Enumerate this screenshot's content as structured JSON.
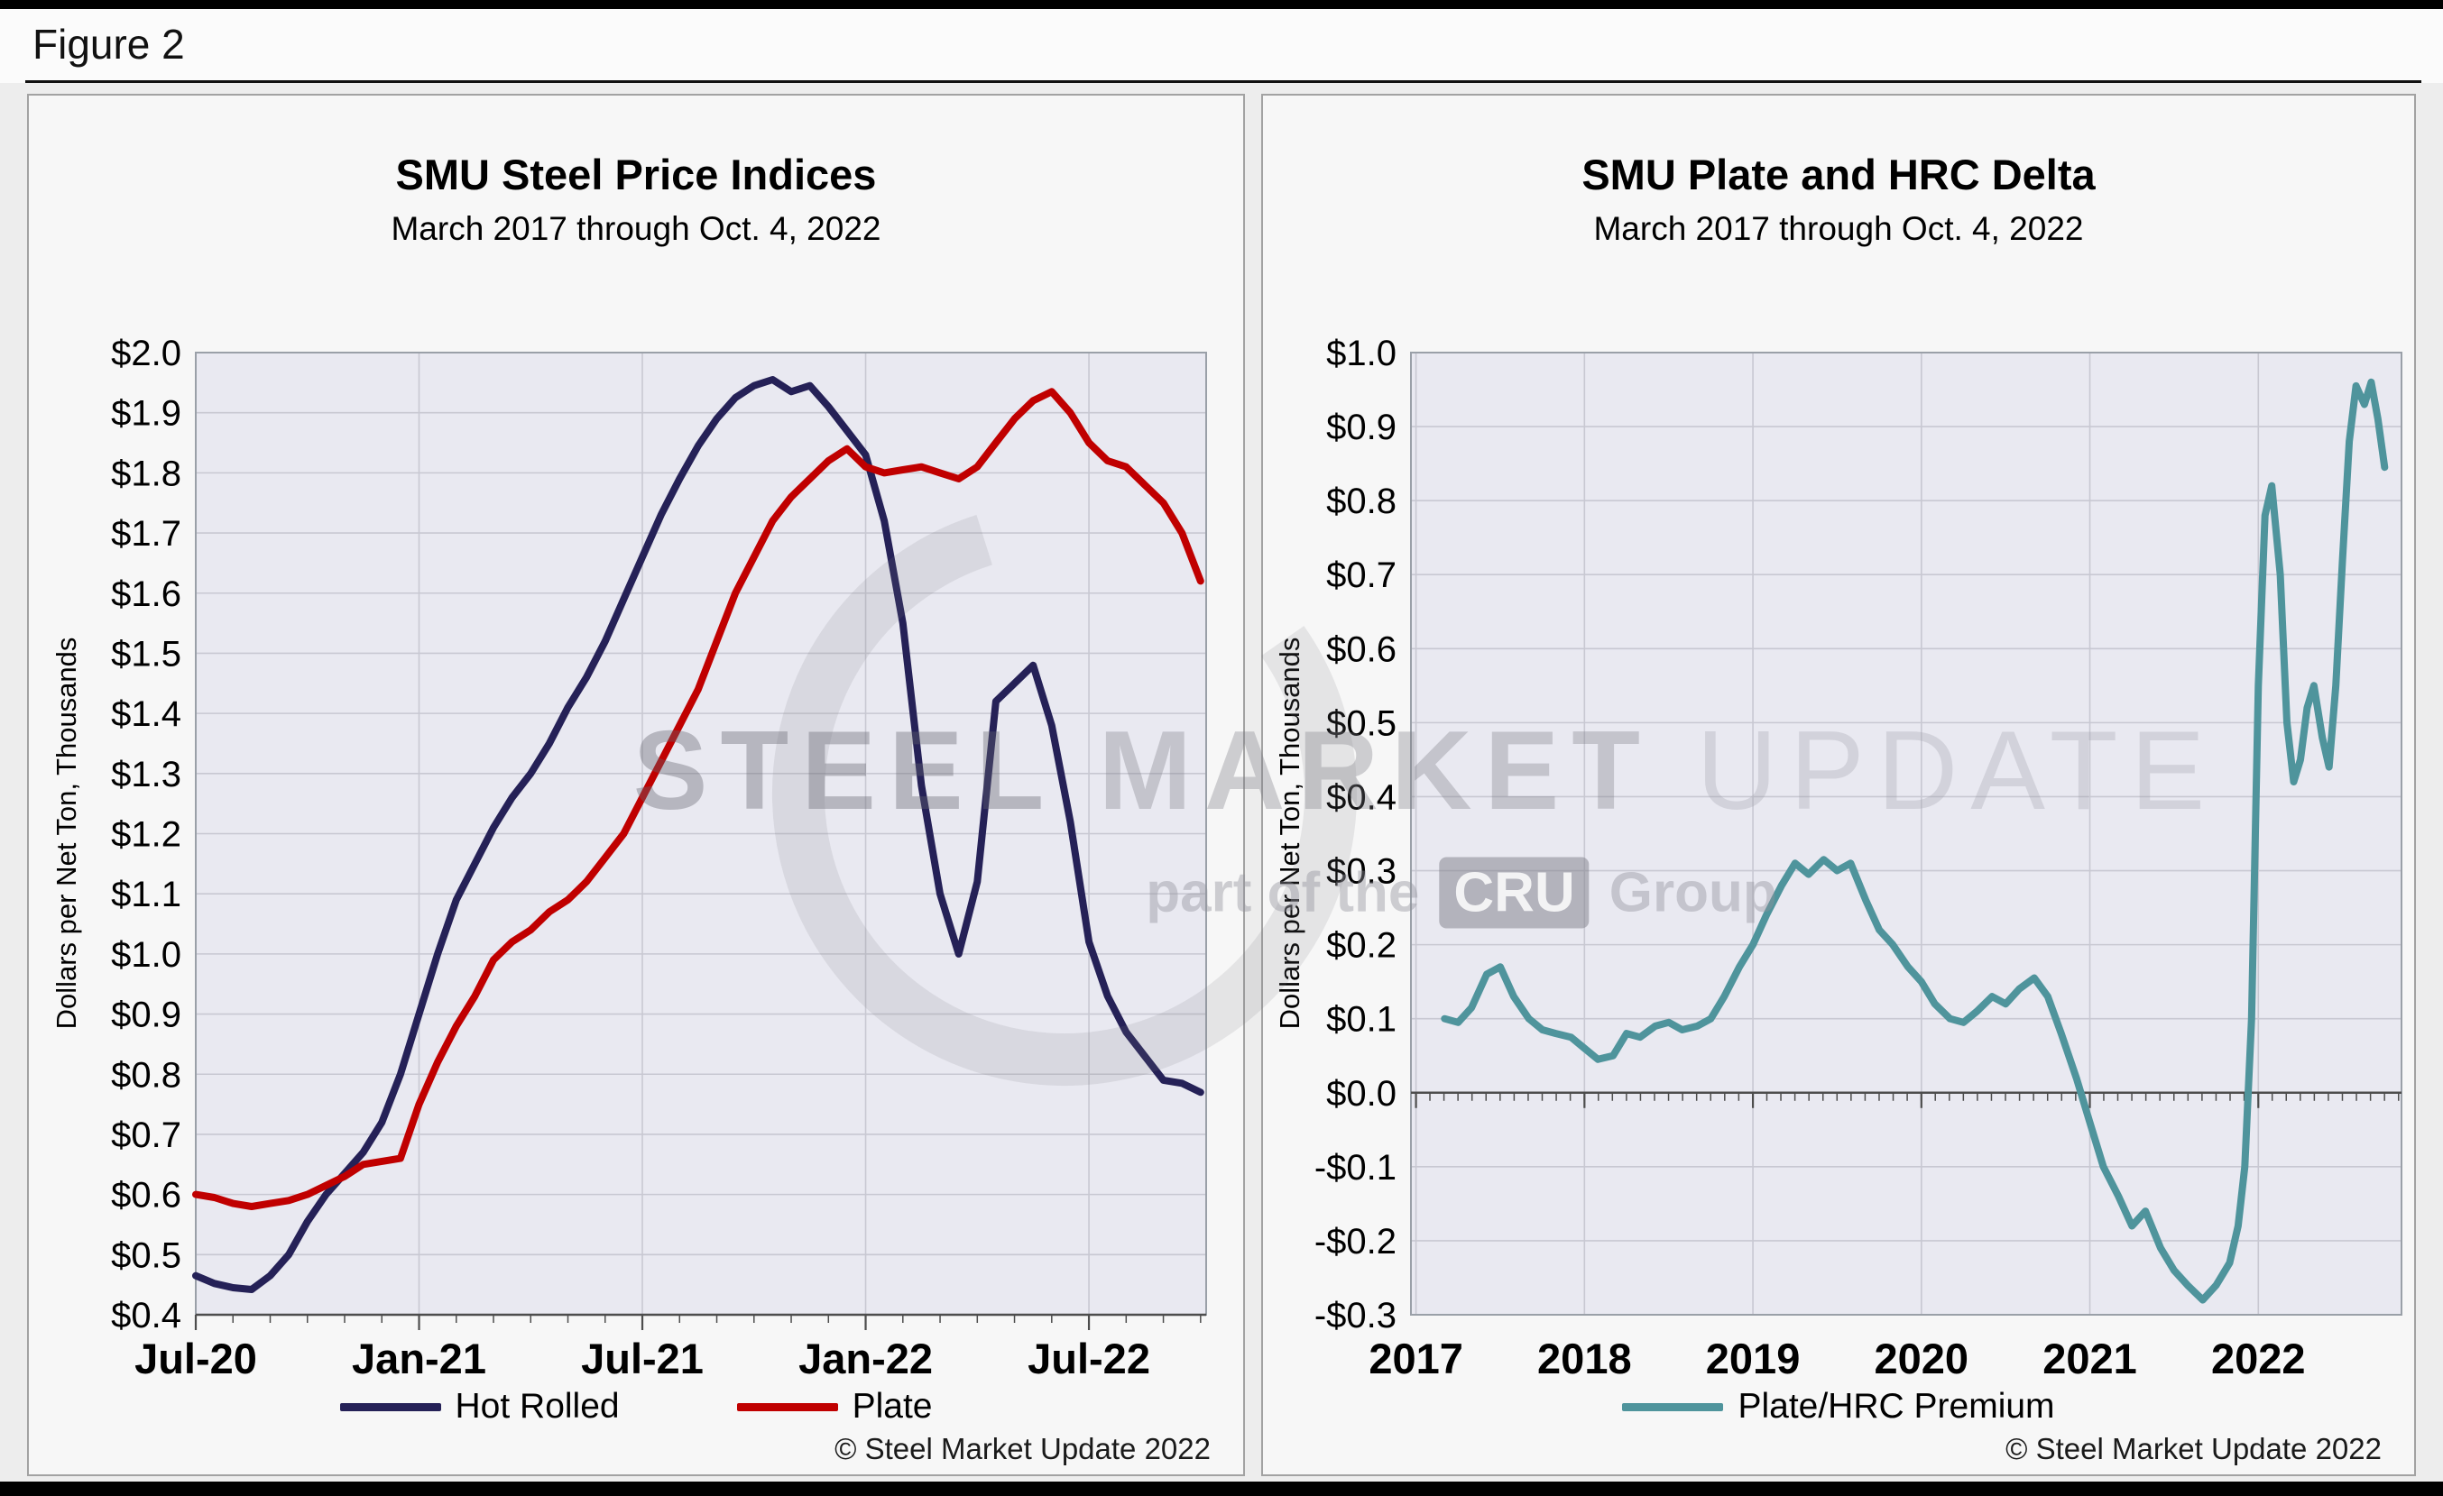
{
  "figure": {
    "label": "Figure 2"
  },
  "watermark": {
    "line1_strong": "STEEL",
    "line1_mid": "MARKET",
    "line1_light": "UPDATE",
    "line2_prefix": "part of the",
    "line2_badge": "CRU",
    "line2_suffix": "Group"
  },
  "chart_data": [
    {
      "type": "line",
      "title": "SMU Steel Price Indices",
      "subtitle": "March 2017 through Oct. 4, 2022",
      "ylabel": "Dollars per Net Ton, Thousands",
      "copyright": "© Steel Market Update 2022",
      "x_axis_note": "x = months since Jul-2020",
      "xlim": [
        0,
        27.15
      ],
      "ylim": [
        0.4,
        2.0
      ],
      "ytick_step": 0.1,
      "ytick_labels": [
        "$0.4",
        "$0.5",
        "$0.6",
        "$0.7",
        "$0.8",
        "$0.9",
        "$1.0",
        "$1.1",
        "$1.2",
        "$1.3",
        "$1.4",
        "$1.5",
        "$1.6",
        "$1.7",
        "$1.8",
        "$1.9",
        "$2.0"
      ],
      "xticks": [
        {
          "x": 0,
          "label": "Jul-20"
        },
        {
          "x": 6,
          "label": "Jan-21"
        },
        {
          "x": 12,
          "label": "Jul-21"
        },
        {
          "x": 18,
          "label": "Jan-22"
        },
        {
          "x": 24,
          "label": "Jul-22"
        }
      ],
      "minor_tick_step": 1,
      "axis_y": "bottom",
      "grid": true,
      "plot_bg": "#e9e9f1",
      "grid_color": "#c8c8d2",
      "legend_position": "bottom",
      "series": [
        {
          "name": "Hot Rolled",
          "color": "#252157",
          "x_start": 0,
          "x_step": 0.5,
          "values": [
            0.465,
            0.452,
            0.445,
            0.442,
            0.465,
            0.5,
            0.555,
            0.6,
            0.635,
            0.67,
            0.72,
            0.8,
            0.9,
            1.0,
            1.09,
            1.15,
            1.21,
            1.26,
            1.3,
            1.35,
            1.41,
            1.46,
            1.52,
            1.59,
            1.66,
            1.73,
            1.79,
            1.845,
            1.89,
            1.925,
            1.945,
            1.955,
            1.935,
            1.945,
            1.91,
            1.87,
            1.83,
            1.72,
            1.55,
            1.28,
            1.1,
            1.0,
            1.12,
            1.42,
            1.45,
            1.48,
            1.38,
            1.22,
            1.02,
            0.93,
            0.87,
            0.83,
            0.79,
            0.785,
            0.77
          ]
        },
        {
          "name": "Plate",
          "color": "#c00000",
          "x_start": 0,
          "x_step": 0.5,
          "values": [
            0.6,
            0.595,
            0.585,
            0.58,
            0.585,
            0.59,
            0.6,
            0.615,
            0.63,
            0.65,
            0.655,
            0.66,
            0.75,
            0.82,
            0.88,
            0.93,
            0.99,
            1.02,
            1.04,
            1.07,
            1.09,
            1.12,
            1.16,
            1.2,
            1.26,
            1.32,
            1.38,
            1.44,
            1.52,
            1.6,
            1.66,
            1.72,
            1.76,
            1.79,
            1.82,
            1.84,
            1.81,
            1.8,
            1.805,
            1.81,
            1.8,
            1.79,
            1.81,
            1.85,
            1.89,
            1.92,
            1.935,
            1.9,
            1.85,
            1.82,
            1.81,
            1.78,
            1.75,
            1.7,
            1.62
          ]
        }
      ]
    },
    {
      "type": "line",
      "title": "SMU Plate and HRC Delta",
      "subtitle": "March 2017 through Oct. 4, 2022",
      "ylabel": "Dollars per Net Ton, Thousands",
      "copyright": "© Steel Market Update 2022",
      "x_axis_note": "x = decimal year",
      "xlim": [
        2016.97,
        2022.85
      ],
      "ylim": [
        -0.3,
        1.0
      ],
      "ytick_step": 0.1,
      "ytick_labels": [
        "-$0.3",
        "-$0.2",
        "-$0.1",
        "$0.0",
        "$0.1",
        "$0.2",
        "$0.3",
        "$0.4",
        "$0.5",
        "$0.6",
        "$0.7",
        "$0.8",
        "$0.9",
        "$1.0"
      ],
      "xticks": [
        {
          "x": 2017,
          "label": "2017"
        },
        {
          "x": 2018,
          "label": "2018"
        },
        {
          "x": 2019,
          "label": "2019"
        },
        {
          "x": 2020,
          "label": "2020"
        },
        {
          "x": 2021,
          "label": "2021"
        },
        {
          "x": 2022,
          "label": "2022"
        }
      ],
      "minor_tick_step": 0.0833333,
      "axis_y": "zero",
      "grid": true,
      "plot_bg": "#e9e9f1",
      "grid_color": "#c8c8d2",
      "legend_position": "bottom",
      "series": [
        {
          "name": "Plate/HRC Premium",
          "color": "#4f949c",
          "x": [
            2017.17,
            2017.25,
            2017.33,
            2017.42,
            2017.5,
            2017.58,
            2017.67,
            2017.75,
            2017.83,
            2017.92,
            2018.0,
            2018.08,
            2018.17,
            2018.25,
            2018.33,
            2018.42,
            2018.5,
            2018.58,
            2018.67,
            2018.75,
            2018.83,
            2018.92,
            2019.0,
            2019.08,
            2019.17,
            2019.25,
            2019.33,
            2019.42,
            2019.5,
            2019.58,
            2019.67,
            2019.75,
            2019.83,
            2019.92,
            2020.0,
            2020.08,
            2020.17,
            2020.25,
            2020.33,
            2020.42,
            2020.5,
            2020.58,
            2020.67,
            2020.75,
            2020.83,
            2020.92,
            2021.0,
            2021.08,
            2021.17,
            2021.25,
            2021.33,
            2021.42,
            2021.5,
            2021.58,
            2021.67,
            2021.75,
            2021.83,
            2021.88,
            2021.92,
            2021.96,
            2022.0,
            2022.04,
            2022.08,
            2022.13,
            2022.17,
            2022.21,
            2022.25,
            2022.29,
            2022.33,
            2022.38,
            2022.42,
            2022.46,
            2022.5,
            2022.54,
            2022.58,
            2022.63,
            2022.67,
            2022.71,
            2022.75
          ],
          "values": [
            0.1,
            0.095,
            0.115,
            0.16,
            0.17,
            0.13,
            0.1,
            0.085,
            0.08,
            0.075,
            0.06,
            0.045,
            0.05,
            0.08,
            0.075,
            0.09,
            0.095,
            0.085,
            0.09,
            0.1,
            0.13,
            0.17,
            0.2,
            0.24,
            0.28,
            0.31,
            0.295,
            0.315,
            0.3,
            0.31,
            0.26,
            0.22,
            0.2,
            0.17,
            0.15,
            0.12,
            0.1,
            0.095,
            0.11,
            0.13,
            0.12,
            0.14,
            0.155,
            0.13,
            0.08,
            0.02,
            -0.04,
            -0.1,
            -0.14,
            -0.18,
            -0.16,
            -0.21,
            -0.24,
            -0.26,
            -0.28,
            -0.26,
            -0.23,
            -0.18,
            -0.1,
            0.1,
            0.55,
            0.78,
            0.82,
            0.7,
            0.5,
            0.42,
            0.45,
            0.52,
            0.55,
            0.48,
            0.44,
            0.55,
            0.72,
            0.88,
            0.955,
            0.93,
            0.96,
            0.91,
            0.845
          ]
        }
      ]
    }
  ]
}
